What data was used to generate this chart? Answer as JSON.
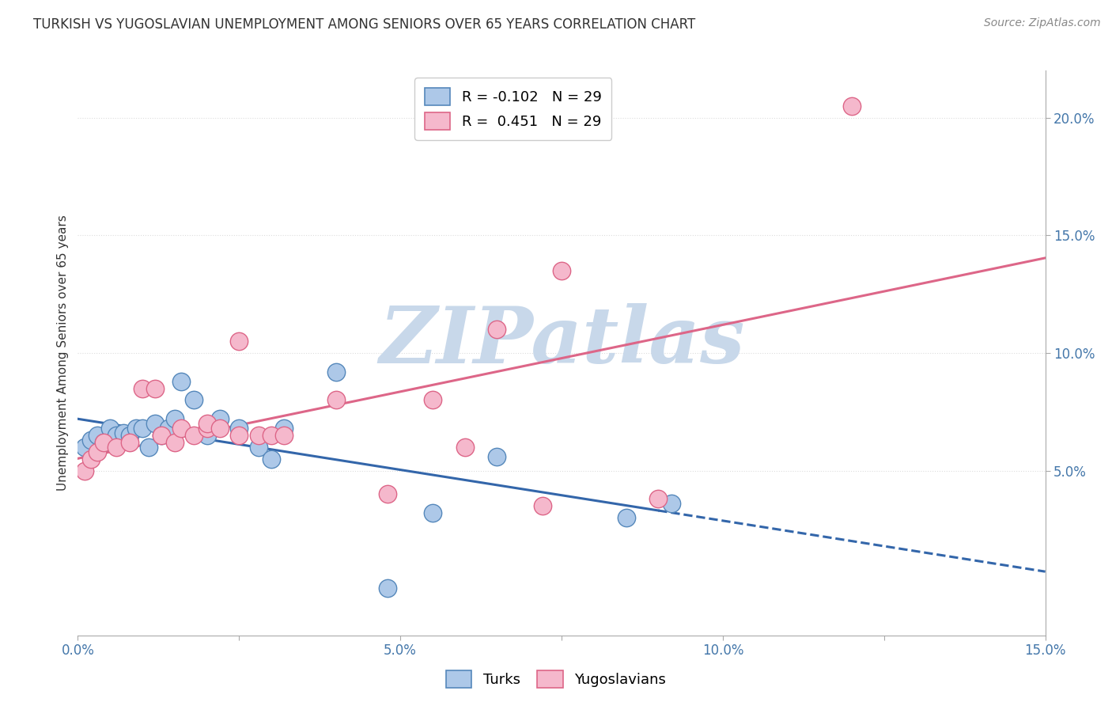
{
  "title": "TURKISH VS YUGOSLAVIAN UNEMPLOYMENT AMONG SENIORS OVER 65 YEARS CORRELATION CHART",
  "source": "Source: ZipAtlas.com",
  "ylabel": "Unemployment Among Seniors over 65 years",
  "xlim": [
    0.0,
    0.15
  ],
  "ylim": [
    -0.02,
    0.22
  ],
  "plot_ylim": [
    -0.02,
    0.22
  ],
  "x_ticks": [
    0.0,
    0.025,
    0.05,
    0.075,
    0.1,
    0.125,
    0.15
  ],
  "x_tick_labels": [
    "0.0%",
    "",
    "5.0%",
    "",
    "10.0%",
    "",
    "15.0%"
  ],
  "y_ticks_right": [
    0.05,
    0.1,
    0.15,
    0.2
  ],
  "y_tick_labels_right": [
    "5.0%",
    "10.0%",
    "15.0%",
    "20.0%"
  ],
  "turks_x": [
    0.001,
    0.002,
    0.003,
    0.004,
    0.005,
    0.006,
    0.007,
    0.008,
    0.009,
    0.01,
    0.011,
    0.012,
    0.013,
    0.014,
    0.015,
    0.016,
    0.018,
    0.02,
    0.022,
    0.025,
    0.028,
    0.03,
    0.032,
    0.04,
    0.048,
    0.055,
    0.065,
    0.085,
    0.092
  ],
  "turks_y": [
    0.06,
    0.063,
    0.065,
    0.062,
    0.068,
    0.065,
    0.066,
    0.065,
    0.068,
    0.068,
    0.06,
    0.07,
    0.065,
    0.068,
    0.072,
    0.088,
    0.08,
    0.065,
    0.072,
    0.068,
    0.06,
    0.055,
    0.068,
    0.092,
    0.0,
    0.032,
    0.056,
    0.03,
    0.036
  ],
  "yugo_x": [
    0.001,
    0.002,
    0.003,
    0.004,
    0.006,
    0.008,
    0.01,
    0.012,
    0.013,
    0.015,
    0.016,
    0.018,
    0.02,
    0.02,
    0.022,
    0.025,
    0.025,
    0.028,
    0.03,
    0.032,
    0.04,
    0.048,
    0.055,
    0.06,
    0.065,
    0.072,
    0.075,
    0.09,
    0.12
  ],
  "yugo_y": [
    0.05,
    0.055,
    0.058,
    0.062,
    0.06,
    0.062,
    0.085,
    0.085,
    0.065,
    0.062,
    0.068,
    0.065,
    0.068,
    0.07,
    0.068,
    0.105,
    0.065,
    0.065,
    0.065,
    0.065,
    0.08,
    0.04,
    0.08,
    0.06,
    0.11,
    0.035,
    0.135,
    0.038,
    0.205
  ],
  "turks_color": "#adc8e8",
  "turks_edge_color": "#5588bb",
  "yugo_color": "#f5b8cc",
  "yugo_edge_color": "#dd6688",
  "turks_r": -0.102,
  "turks_n": 29,
  "yugo_r": 0.451,
  "yugo_n": 29,
  "trend_turks_color": "#3366aa",
  "trend_yugo_color": "#dd6688",
  "watermark": "ZIPatlas",
  "watermark_color": "#c8d8ea",
  "background_color": "#ffffff",
  "grid_color": "#dddddd",
  "title_color": "#333333",
  "tick_color_blue": "#4477aa"
}
